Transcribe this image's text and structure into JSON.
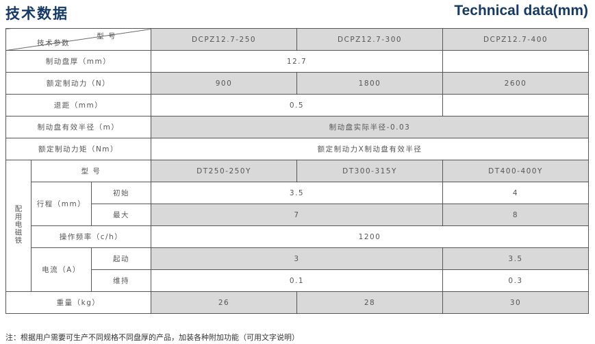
{
  "title_cn": "技术数据",
  "title_en": "Technical data(mm)",
  "header": {
    "corner_top": "型 号",
    "corner_bottom": "技术参数",
    "models": [
      "DCPZ12.7-250",
      "DCPZ12.7-300",
      "DCPZ12.7-400"
    ]
  },
  "rows": {
    "thickness": {
      "label": "制动盘厚（mm）",
      "v12": "12.7",
      "v3": ""
    },
    "force": {
      "label": "额定制动力（N）",
      "values": [
        "900",
        "1800",
        "2600"
      ]
    },
    "retreat": {
      "label": "退距（mm）",
      "v12": "0.5",
      "v3": ""
    },
    "radius": {
      "label": "制动盘有效半径（m）",
      "value": "制动盘实际半径-0.03"
    },
    "torque": {
      "label": "额定制动力矩（Nm）",
      "value": "额定制动力X制动盘有效半径"
    }
  },
  "magnet": {
    "group_label": "配用电磁铁",
    "model_label": "型 号",
    "models": [
      "DT250-250Y",
      "DT300-315Y",
      "DT400-400Y"
    ],
    "stroke_label": "行程（mm）",
    "stroke_initial": {
      "label": "初始",
      "v12": "3.5",
      "v3": "4"
    },
    "stroke_max": {
      "label": "最大",
      "v12": "7",
      "v3": "8"
    },
    "freq": {
      "label": "操作频率（c/h）",
      "value": "1200"
    },
    "current_label": "电流（A）",
    "current_start": {
      "label": "起动",
      "v12": "3",
      "v3": "3.5"
    },
    "current_hold": {
      "label": "维持",
      "v12": "0.1",
      "v3": "0.3"
    }
  },
  "weight": {
    "label": "重量（kg）",
    "values": [
      "26",
      "28",
      "30"
    ]
  },
  "note": "注：根据用户需要可生产不同规格不同盘厚的产品，加装各种附加功能（可用文字说明）"
}
